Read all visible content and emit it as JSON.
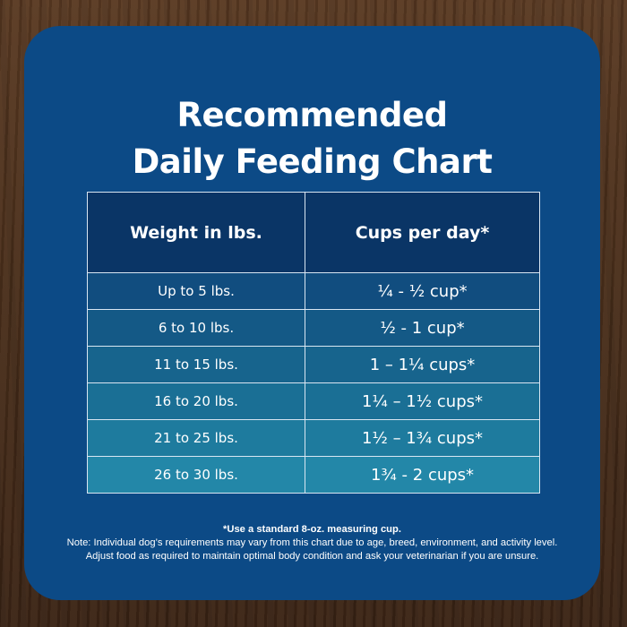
{
  "title": {
    "line1": "Recommended",
    "line2": "Daily Feeding Chart"
  },
  "table": {
    "headers": [
      "Weight in lbs.",
      "Cups per day*"
    ],
    "rows": [
      {
        "weight": "Up to 5 lbs.",
        "cups": "¼ - ½ cup*"
      },
      {
        "weight": "6 to 10 lbs.",
        "cups": "½ - 1 cup*"
      },
      {
        "weight": "11 to 15 lbs.",
        "cups": "1 – 1¼ cups*"
      },
      {
        "weight": "16 to 20 lbs.",
        "cups": "1¼ – 1½ cups*"
      },
      {
        "weight": "21 to 25 lbs.",
        "cups": "1½ – 1¾ cups*"
      },
      {
        "weight": "26 to 30 lbs.",
        "cups": "1¾ - 2 cups*"
      }
    ]
  },
  "notes": {
    "line1": "*Use a standard 8-oz. measuring cup.",
    "line2": "Note: Individual dog’s requirements may vary from this chart due to age, breed, environment, and activity level.",
    "line3": "Adjust food as required to maintain optimal body condition and ask your veterinarian if you are unsure."
  },
  "colors": {
    "card": "#0c4a86",
    "header_cell": "#0a3566",
    "row_gradient": [
      "#114d7f",
      "#145986",
      "#17648d",
      "#1a6f95",
      "#1e7b9e",
      "#2387a8"
    ],
    "text": "#ffffff"
  }
}
